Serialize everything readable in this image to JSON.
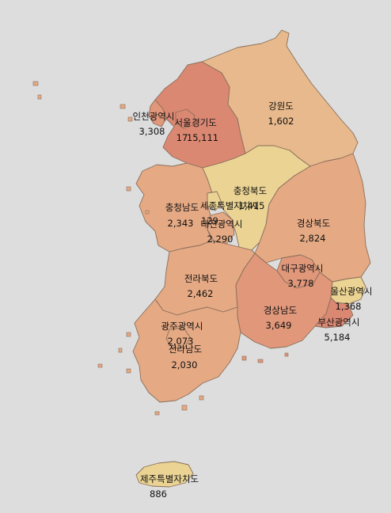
{
  "colors": {
    "background": "#dddddd",
    "highest": "#db8873",
    "high": "#e0977a",
    "mid": "#e5a984",
    "low": "#e7b98c",
    "lowest": "#ead393"
  },
  "regions": [
    {
      "key": "seoul",
      "name": "서울",
      "value": "17"
    },
    {
      "key": "incheon",
      "name": "인천광역시",
      "value": "3,308"
    },
    {
      "key": "gyeonggi",
      "name": "경기도",
      "value": "15,111"
    },
    {
      "key": "gangwon",
      "name": "강원도",
      "value": "1,602"
    },
    {
      "key": "chungbuk",
      "name": "충청북도",
      "value": "1,415"
    },
    {
      "key": "chungnam",
      "name": "충청남도",
      "value": "2,343"
    },
    {
      "key": "sejong",
      "name": "세종특별자치시",
      "value": "129"
    },
    {
      "key": "daejeon",
      "name": "대전광역시",
      "value": "2,290"
    },
    {
      "key": "gyeongbuk",
      "name": "경상북도",
      "value": "2,824"
    },
    {
      "key": "jeonbuk",
      "name": "전라북도",
      "value": "2,462"
    },
    {
      "key": "daegu",
      "name": "대구광역시",
      "value": "3,778"
    },
    {
      "key": "ulsan",
      "name": "울산광역시",
      "value": "1,368"
    },
    {
      "key": "gyeongnam",
      "name": "경상남도",
      "value": "3,649"
    },
    {
      "key": "busan",
      "name": "부산광역시",
      "value": "5,184"
    },
    {
      "key": "gwangju",
      "name": "광주광역시",
      "value": "2,073"
    },
    {
      "key": "jeonnam",
      "name": "전라남도",
      "value": "2,030"
    },
    {
      "key": "jeju",
      "name": "제주특별자치도",
      "value": "886"
    }
  ]
}
